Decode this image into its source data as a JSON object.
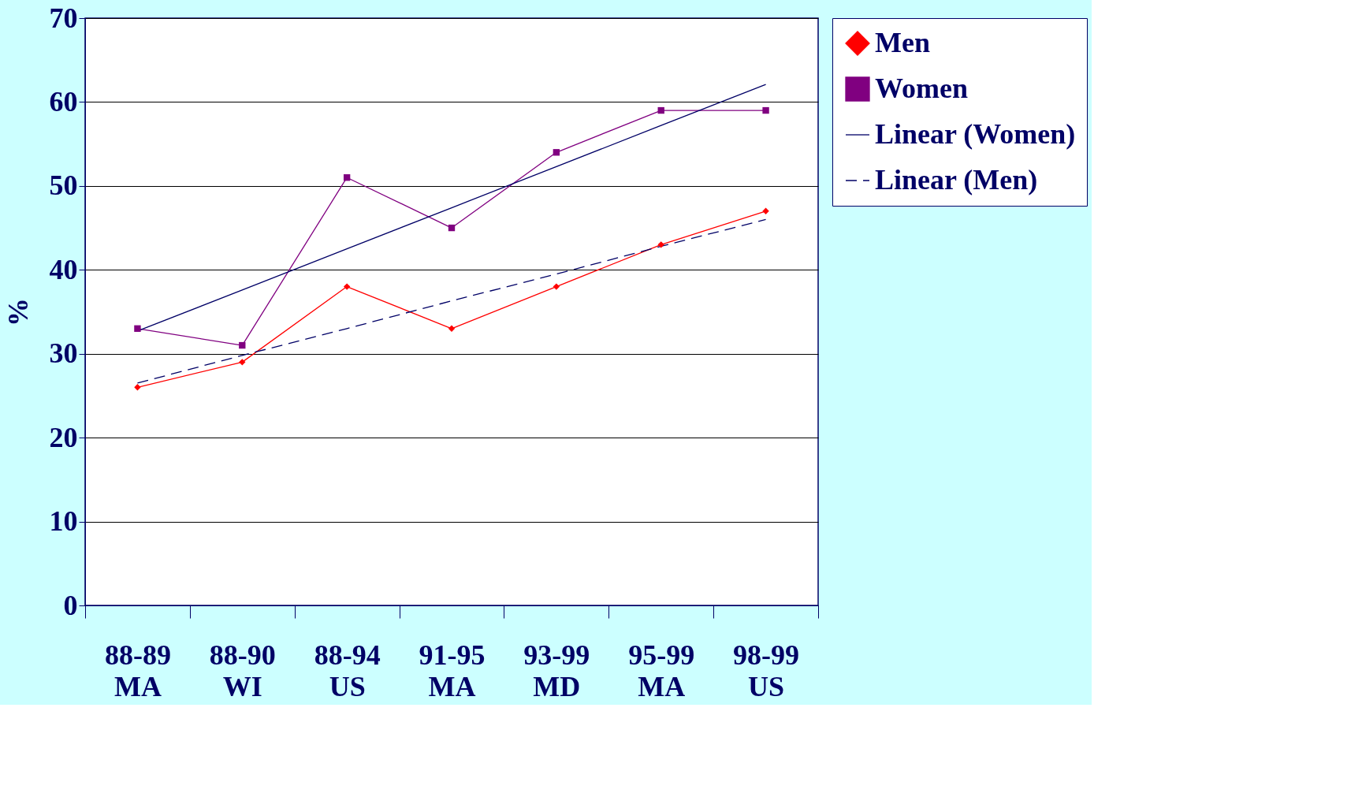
{
  "chart_data": {
    "type": "line",
    "ylabel": "%",
    "categories": [
      "88-89 MA",
      "88-90 WI",
      "88-94 US",
      "91-95 MA",
      "93-99 MD",
      "95-99 MA",
      "98-99 US"
    ],
    "series": [
      {
        "name": "Men",
        "color": "#ff0000",
        "marker": "diamond",
        "line_style": "solid",
        "values": [
          26,
          29,
          38,
          33,
          38,
          43,
          47
        ]
      },
      {
        "name": "Women",
        "color": "#800080",
        "marker": "square",
        "line_style": "solid",
        "values": [
          33,
          31,
          51,
          45,
          54,
          59,
          59
        ]
      },
      {
        "name": "Linear (Women)",
        "color": "#000066",
        "marker": "none",
        "line_style": "solid",
        "values": [
          32.7,
          37.6,
          42.5,
          47.4,
          52.3,
          57.2,
          62.1
        ]
      },
      {
        "name": "Linear (Men)",
        "color": "#000066",
        "marker": "none",
        "line_style": "dashed",
        "values": [
          26.5,
          29.8,
          33.0,
          36.3,
          39.5,
          42.8,
          46.0
        ]
      }
    ],
    "ylim": [
      0,
      70
    ],
    "yticks": [
      0,
      10,
      20,
      30,
      40,
      50,
      60,
      70
    ],
    "grid": "y",
    "legend": "right"
  }
}
